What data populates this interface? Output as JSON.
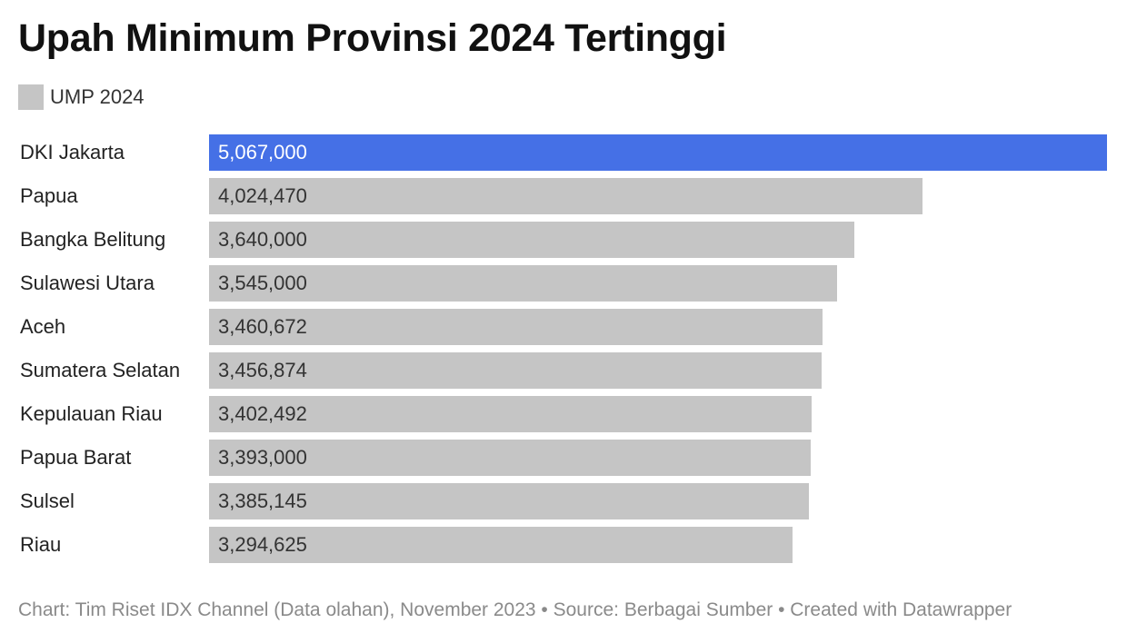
{
  "chart_data": {
    "type": "bar",
    "orientation": "horizontal",
    "title": "Upah Minimum Provinsi 2024 Tertinggi",
    "legend": {
      "label": "UMP 2024",
      "color": "#c5c5c5",
      "placement": "top-left"
    },
    "categories": [
      "DKI Jakarta",
      "Papua",
      "Bangka Belitung",
      "Sulawesi Utara",
      "Aceh",
      "Sumatera Selatan",
      "Kepulauan Riau",
      "Papua Barat",
      "Sulsel",
      "Riau"
    ],
    "values": [
      5067000,
      4024470,
      3640000,
      3545000,
      3460672,
      3456874,
      3402492,
      3393000,
      3385145,
      3294625
    ],
    "value_labels": [
      "5,067,000",
      "4,024,470",
      "3,640,000",
      "3,545,000",
      "3,460,672",
      "3,456,874",
      "3,402,492",
      "3,393,000",
      "3,385,145",
      "3,294,625"
    ],
    "highlight_index": 0,
    "colors": {
      "default_bar": "#c5c5c5",
      "highlight_bar": "#4570e6",
      "default_value_text": "#333333",
      "highlight_value_text": "#ffffff"
    },
    "xlim": [
      0,
      5067000
    ],
    "grid": false,
    "footer": "Chart: Tim Riset IDX Channel (Data olahan), November 2023 • Source: Berbagai Sumber • Created with Datawrapper"
  }
}
